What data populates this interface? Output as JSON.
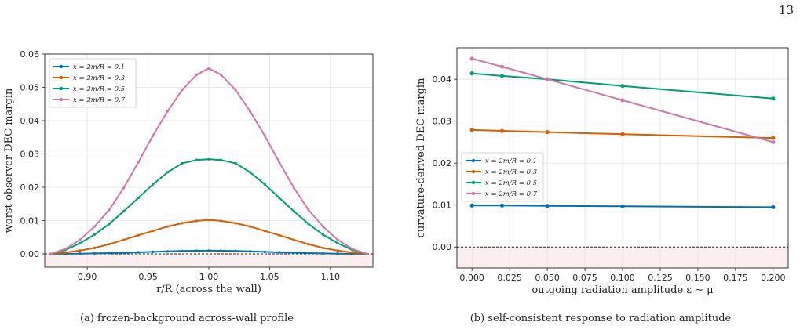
{
  "page_number": "13",
  "colors": {
    "blue": "#0072B2",
    "orange": "#D55E00",
    "green": "#009E73",
    "pink": "#CC79A7",
    "violation_band": "#FBEEEE"
  },
  "chart_data": [
    {
      "type": "line",
      "caption": "(a) frozen-background across-wall profile",
      "xlabel": "r/R  (across the wall)",
      "ylabel": "worst-observer DEC margin",
      "xlim": [
        0.865,
        1.135
      ],
      "ylim": [
        -0.004,
        0.06
      ],
      "xticks": [
        0.9,
        0.95,
        1.0,
        1.05,
        1.1
      ],
      "xtick_labels": [
        "0.90",
        "0.95",
        "1.00",
        "1.05",
        "1.10"
      ],
      "yticks": [
        0.0,
        0.01,
        0.02,
        0.03,
        0.04,
        0.05,
        0.06
      ],
      "ytick_labels": [
        "0.00",
        "0.01",
        "0.02",
        "0.03",
        "0.04",
        "0.05",
        "0.06"
      ],
      "grid": true,
      "legend_position": "upper-left",
      "reference_line": 0.0,
      "x": [
        0.87,
        0.882,
        0.894,
        0.906,
        0.918,
        0.93,
        0.942,
        0.954,
        0.966,
        0.978,
        0.99,
        1.0,
        1.01,
        1.022,
        1.034,
        1.046,
        1.058,
        1.07,
        1.082,
        1.094,
        1.106,
        1.118,
        1.13
      ],
      "series": [
        {
          "name": "x = 2m/R = 0.1",
          "color": "#0072B2",
          "values": [
            0.0,
            3e-05,
            8e-05,
            0.00015,
            0.00024,
            0.00035,
            0.00048,
            0.00062,
            0.00075,
            0.00087,
            0.00095,
            0.00098,
            0.00095,
            0.00087,
            0.00075,
            0.00062,
            0.00048,
            0.00035,
            0.00024,
            0.00015,
            8e-05,
            3e-05,
            0.0
          ]
        },
        {
          "name": "x = 2m/R = 0.3",
          "color": "#D55E00",
          "values": [
            0.0,
            0.0004,
            0.001,
            0.0018,
            0.0029,
            0.0042,
            0.0056,
            0.0069,
            0.0082,
            0.0092,
            0.0099,
            0.0102,
            0.0099,
            0.0092,
            0.0082,
            0.0069,
            0.0056,
            0.0042,
            0.0029,
            0.0018,
            0.001,
            0.0004,
            0.0
          ]
        },
        {
          "name": "x = 2m/R = 0.5",
          "color": "#009E73",
          "values": [
            0.0,
            0.0012,
            0.0032,
            0.0058,
            0.009,
            0.0128,
            0.0168,
            0.0209,
            0.0245,
            0.0272,
            0.0282,
            0.0284,
            0.0282,
            0.0272,
            0.0245,
            0.0209,
            0.0168,
            0.0128,
            0.009,
            0.0058,
            0.0032,
            0.0012,
            0.0
          ]
        },
        {
          "name": "x = 2m/R = 0.7",
          "color": "#CC79A7",
          "values": [
            0.0,
            0.0015,
            0.0042,
            0.0082,
            0.0132,
            0.0198,
            0.0275,
            0.0355,
            0.0428,
            0.0492,
            0.0538,
            0.0557,
            0.0538,
            0.0492,
            0.0428,
            0.0355,
            0.0275,
            0.0198,
            0.0132,
            0.0082,
            0.0042,
            0.0015,
            0.0
          ]
        }
      ]
    },
    {
      "type": "line",
      "caption": "(b) self-consistent response to radiation amplitude",
      "xlabel": "outgoing radiation amplitude  ε ∼ μ",
      "ylabel": "curvature-derived DEC margin",
      "xlim": [
        -0.01,
        0.21
      ],
      "ylim": [
        -0.005,
        0.0475
      ],
      "xticks": [
        0.0,
        0.025,
        0.05,
        0.075,
        0.1,
        0.125,
        0.15,
        0.175,
        0.2
      ],
      "xtick_labels": [
        "0.000",
        "0.025",
        "0.050",
        "0.075",
        "0.100",
        "0.125",
        "0.150",
        "0.175",
        "0.200"
      ],
      "yticks": [
        0.0,
        0.01,
        0.02,
        0.03,
        0.04
      ],
      "ytick_labels": [
        "0.00",
        "0.01",
        "0.02",
        "0.03",
        "0.04"
      ],
      "grid": true,
      "legend_position": "center-left",
      "reference_line": 0.0,
      "x": [
        0.0,
        0.02,
        0.05,
        0.1,
        0.2
      ],
      "series": [
        {
          "name": "x = 2m/R = 0.1",
          "color": "#0072B2",
          "values": [
            0.0099,
            0.0099,
            0.0098,
            0.0097,
            0.0095
          ]
        },
        {
          "name": "x = 2m/R = 0.3",
          "color": "#D55E00",
          "values": [
            0.0279,
            0.0277,
            0.0274,
            0.0269,
            0.026
          ]
        },
        {
          "name": "x = 2m/R = 0.5",
          "color": "#009E73",
          "values": [
            0.0414,
            0.0408,
            0.04,
            0.0384,
            0.0354
          ]
        },
        {
          "name": "x = 2m/R = 0.7",
          "color": "#CC79A7",
          "values": [
            0.0449,
            0.043,
            0.04,
            0.035,
            0.025
          ]
        }
      ]
    }
  ]
}
